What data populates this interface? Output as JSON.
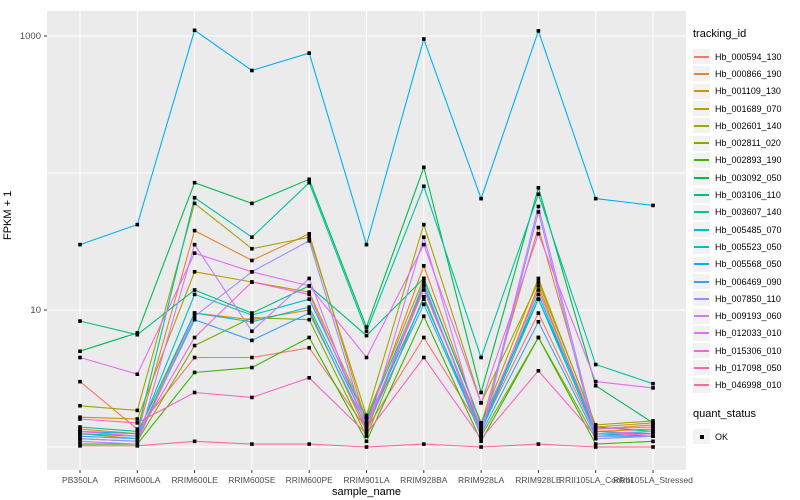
{
  "axes": {
    "x_title": "sample_name",
    "y_title": "FPKM + 1",
    "y_scale": "log10",
    "y_tick_labels": [
      {
        "label": "1000",
        "value": 1000
      },
      {
        "label": "10",
        "value": 10
      }
    ],
    "y_gridline_values": [
      1,
      10,
      100,
      1000
    ]
  },
  "legend_tracking": {
    "title": "tracking_id"
  },
  "legend_quant": {
    "title": "quant_status",
    "items": [
      {
        "label": "OK",
        "marker": "black-square"
      }
    ]
  },
  "colors": {
    "panel_bg": "#EBEBEB",
    "gridline": "#FFFFFF",
    "tick_text": "#4D4D4D",
    "axis_title_text": "#000000",
    "point_marker": "#000000",
    "legend_key_bg": "#F2F2F2"
  },
  "chart_data": {
    "type": "line",
    "title": "",
    "xlabel": "sample_name",
    "ylabel": "FPKM + 1",
    "y_axis": "log10",
    "ylim": [
      1,
      1500
    ],
    "grid": "major-white-on-gray",
    "legend_position": "right",
    "point_marker": "small black square (quant_status OK)",
    "categories": [
      "PB350LA",
      "RRIM600LA",
      "RRIM600LE",
      "RRIM600SE",
      "RRIM600PE",
      "RRIM901LA",
      "RRIM928BA",
      "RRIM928LA",
      "RRIM928LE",
      "RRII105LA_Control",
      "RRII105LA_Stressed"
    ],
    "series": [
      {
        "name": "Hb_000594_130",
        "color": "#F8766D",
        "values": [
          3.0,
          1.35,
          4.5,
          4.5,
          5.3,
          1.35,
          6.3,
          1.35,
          9.5,
          1.25,
          1.25
        ]
      },
      {
        "name": "Hb_000866_190",
        "color": "#EA8331",
        "values": [
          1.35,
          1.25,
          38,
          23,
          36,
          1.5,
          21,
          1.45,
          40,
          1.35,
          1.45
        ]
      },
      {
        "name": "Hb_001109_130",
        "color": "#D89000",
        "values": [
          1.25,
          1.15,
          9.5,
          8.5,
          10,
          1.3,
          15,
          1.3,
          15,
          1.3,
          1.35
        ]
      },
      {
        "name": "Hb_001689_070",
        "color": "#C09B00",
        "values": [
          1.65,
          1.6,
          19,
          16,
          13.5,
          1.65,
          17,
          1.5,
          17,
          1.4,
          1.5
        ]
      },
      {
        "name": "Hb_002601_140",
        "color": "#A3A500",
        "values": [
          2.0,
          1.85,
          60,
          28,
          34,
          1.7,
          42,
          2.1,
          16,
          1.45,
          1.55
        ]
      },
      {
        "name": "Hb_002811_020",
        "color": "#7CAE00",
        "values": [
          1.15,
          1.1,
          5.5,
          8.8,
          8.5,
          1.2,
          12.5,
          1.2,
          6.3,
          1.15,
          1.2
        ]
      },
      {
        "name": "Hb_002893_190",
        "color": "#39B600",
        "values": [
          1.05,
          1.05,
          3.5,
          3.8,
          6.3,
          1.1,
          9.0,
          1.1,
          6.3,
          1.05,
          1.1
        ]
      },
      {
        "name": "Hb_003092_050",
        "color": "#00BB4E",
        "values": [
          5.0,
          6.8,
          85,
          60,
          90,
          7.5,
          110,
          2.5,
          78,
          2.8,
          1.5
        ]
      },
      {
        "name": "Hb_003106_110",
        "color": "#00BF7D",
        "values": [
          8.3,
          6.6,
          14,
          9.5,
          15,
          6.5,
          17,
          1.5,
          12,
          1.4,
          1.3
        ]
      },
      {
        "name": "Hb_003607_140",
        "color": "#00C1A3",
        "values": [
          1.4,
          1.3,
          66,
          34,
          85,
          7.0,
          80,
          4.5,
          70,
          4.0,
          2.9
        ]
      },
      {
        "name": "Hb_005485_070",
        "color": "#00BFC4",
        "values": [
          1.25,
          1.2,
          13,
          9.2,
          12,
          1.6,
          15,
          1.35,
          13,
          1.3,
          1.25
        ]
      },
      {
        "name": "Hb_005523_050",
        "color": "#00BAE0",
        "values": [
          1.3,
          1.25,
          9.5,
          8.2,
          10.5,
          1.5,
          12,
          1.3,
          12,
          1.25,
          1.2
        ]
      },
      {
        "name": "Hb_005568_050",
        "color": "#00B0F6",
        "values": [
          30,
          42,
          1100,
          560,
          750,
          30,
          950,
          65,
          1090,
          65,
          58
        ]
      },
      {
        "name": "Hb_006469_090",
        "color": "#35A2FF",
        "values": [
          1.2,
          1.15,
          8.5,
          6.0,
          9.5,
          1.4,
          11,
          1.25,
          8.2,
          1.2,
          1.2
        ]
      },
      {
        "name": "Hb_007850_110",
        "color": "#9590FF",
        "values": [
          1.15,
          1.1,
          9.0,
          19,
          32,
          1.35,
          16,
          1.2,
          52,
          1.15,
          1.2
        ]
      },
      {
        "name": "Hb_009193_060",
        "color": "#C77CFF",
        "values": [
          1.1,
          1.05,
          30,
          7.0,
          17,
          1.3,
          34,
          1.25,
          57,
          1.25,
          1.3
        ]
      },
      {
        "name": "Hb_012033_010",
        "color": "#E76BF3",
        "values": [
          4.5,
          3.4,
          26,
          19,
          15,
          4.5,
          30,
          2.1,
          36,
          3.0,
          2.7
        ]
      },
      {
        "name": "Hb_015306_010",
        "color": "#FA62DB",
        "values": [
          1.3,
          1.2,
          6.3,
          16,
          13,
          1.45,
          14,
          1.4,
          14,
          1.35,
          1.4
        ]
      },
      {
        "name": "Hb_017098_050",
        "color": "#FF62BC",
        "values": [
          1.6,
          1.5,
          2.5,
          2.3,
          3.2,
          1.25,
          4.5,
          1.15,
          3.6,
          1.2,
          1.25
        ]
      },
      {
        "name": "Hb_046998_010",
        "color": "#FF6A98",
        "values": [
          1.02,
          1.02,
          1.1,
          1.05,
          1.05,
          1.0,
          1.05,
          1.0,
          1.05,
          1.0,
          1.0
        ]
      }
    ]
  }
}
